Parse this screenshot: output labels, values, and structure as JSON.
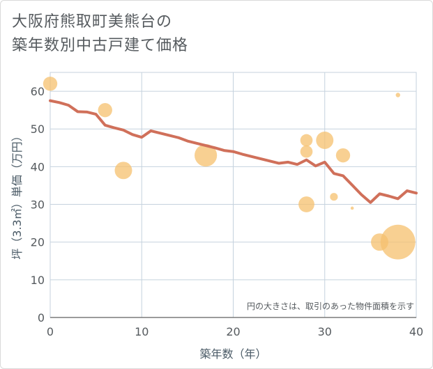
{
  "title_line1": "大阪府熊取町美熊台の",
  "title_line2": "築年数別中古戸建て価格",
  "chart_data": {
    "type": "scatter",
    "xlabel": "築年数（年）",
    "ylabel": "坪（3.3㎡）単価（万円）",
    "xlim": [
      0,
      40
    ],
    "ylim": [
      0,
      65
    ],
    "xticks": [
      "0",
      "10",
      "20",
      "30",
      "40"
    ],
    "yticks": [
      "0",
      "10",
      "20",
      "30",
      "40",
      "50",
      "60"
    ],
    "note": "円の大きさは、取引のあった物件面積を示す",
    "grid": true,
    "colors": {
      "bubble": "#f5c06e",
      "line": "#d0705a",
      "grid": "#c5d2de"
    },
    "bubbles": [
      {
        "x": 0,
        "y": 62,
        "size": 2
      },
      {
        "x": 6,
        "y": 55,
        "size": 2
      },
      {
        "x": 8,
        "y": 39,
        "size": 3
      },
      {
        "x": 17,
        "y": 43,
        "size": 5
      },
      {
        "x": 28,
        "y": 47,
        "size": 1.5
      },
      {
        "x": 28,
        "y": 44,
        "size": 1.5
      },
      {
        "x": 28,
        "y": 30,
        "size": 2.5
      },
      {
        "x": 30,
        "y": 47,
        "size": 3
      },
      {
        "x": 31,
        "y": 32,
        "size": 0.6
      },
      {
        "x": 32,
        "y": 43,
        "size": 2
      },
      {
        "x": 33,
        "y": 29,
        "size": 0.1
      },
      {
        "x": 36,
        "y": 20,
        "size": 3
      },
      {
        "x": 38,
        "y": 20,
        "size": 12
      },
      {
        "x": 38,
        "y": 59,
        "size": 0.2
      }
    ],
    "trend": {
      "x": [
        0,
        1,
        2,
        3,
        4,
        5,
        6,
        7,
        8,
        9,
        10,
        11,
        12,
        13,
        14,
        15,
        16,
        17,
        18,
        19,
        20,
        21,
        22,
        23,
        24,
        25,
        26,
        27,
        28,
        29,
        30,
        31,
        32,
        33,
        34,
        35,
        36,
        37,
        38,
        39,
        40
      ],
      "y": [
        57.5,
        57,
        56.3,
        54.6,
        54.5,
        53.9,
        51,
        50.3,
        49.7,
        48.5,
        47.8,
        49.5,
        48.9,
        48.3,
        47.7,
        46.8,
        46.2,
        45.6,
        45,
        44.3,
        44,
        43.3,
        42.7,
        42.1,
        41.5,
        40.9,
        41.2,
        40.6,
        41.8,
        40.2,
        41.2,
        38.2,
        37.6,
        35.1,
        32.6,
        30.5,
        32.8,
        32.2,
        31.5,
        33.6,
        33
      ]
    }
  }
}
